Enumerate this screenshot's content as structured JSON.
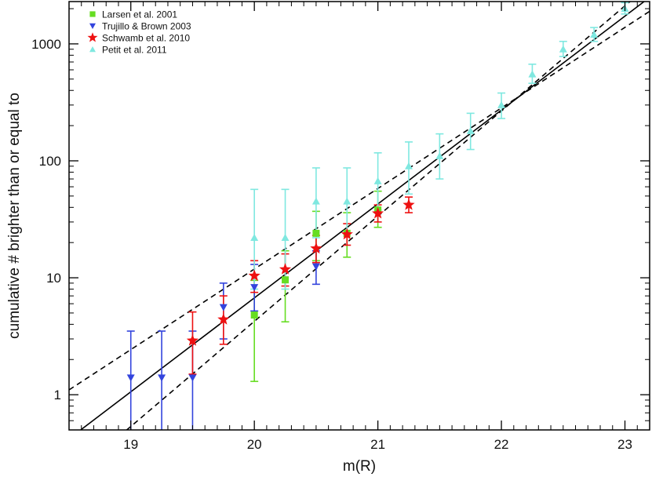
{
  "chart_data": {
    "type": "scatter",
    "xlabel": "m(R)",
    "ylabel": "cumulative # brighter than or equal to",
    "xlim": [
      18.5,
      23.2
    ],
    "ylim": [
      0.5,
      2300
    ],
    "yscale": "log",
    "grid": false,
    "legend_position": "top-left",
    "x_ticks": [
      19,
      20,
      21,
      22,
      23
    ],
    "x_tick_labels": [
      "19",
      "20",
      "21",
      "22",
      "23"
    ],
    "y_ticks": [
      1,
      10,
      100,
      1000
    ],
    "y_tick_labels": [
      "1",
      "10",
      "100",
      "1000"
    ],
    "series": [
      {
        "name": "Larsen et al. 2001",
        "marker": "square",
        "color": "#66dd22",
        "points": [
          {
            "x": 20.0,
            "y": 4.8,
            "lo": 1.3,
            "hi": 9.5
          },
          {
            "x": 20.25,
            "y": 9.6,
            "lo": 4.2,
            "hi": 17
          },
          {
            "x": 20.5,
            "y": 24,
            "lo": 14,
            "hi": 37
          },
          {
            "x": 20.75,
            "y": 24,
            "lo": 15,
            "hi": 36
          },
          {
            "x": 21.0,
            "y": 38,
            "lo": 27,
            "hi": 55
          }
        ]
      },
      {
        "name": "Trujillo & Brown 2003",
        "marker": "triangle-down",
        "color": "#3344dd",
        "points": [
          {
            "x": 19.0,
            "y": 1.4,
            "lo": 0.4,
            "hi": 3.5
          },
          {
            "x": 19.25,
            "y": 1.4,
            "lo": 0.4,
            "hi": 3.5
          },
          {
            "x": 19.5,
            "y": 1.4,
            "lo": 0.4,
            "hi": 3.5
          },
          {
            "x": 19.75,
            "y": 5.6,
            "lo": 3.0,
            "hi": 9.0
          },
          {
            "x": 20.0,
            "y": 8.3,
            "lo": 5.2,
            "hi": 13
          },
          {
            "x": 20.5,
            "y": 12.5,
            "lo": 8.8,
            "hi": 17
          }
        ]
      },
      {
        "name": "Schwamb et al. 2010",
        "marker": "star",
        "color": "#ee1111",
        "points": [
          {
            "x": 19.5,
            "y": 2.9,
            "lo": 1.5,
            "hi": 5.1
          },
          {
            "x": 19.75,
            "y": 4.4,
            "lo": 2.7,
            "hi": 7.0
          },
          {
            "x": 20.0,
            "y": 10.4,
            "lo": 7.5,
            "hi": 14
          },
          {
            "x": 20.25,
            "y": 11.8,
            "lo": 8.5,
            "hi": 16
          },
          {
            "x": 20.5,
            "y": 17.8,
            "lo": 13.5,
            "hi": 23
          },
          {
            "x": 20.75,
            "y": 23.5,
            "lo": 19,
            "hi": 29
          },
          {
            "x": 21.0,
            "y": 35.5,
            "lo": 30,
            "hi": 42
          },
          {
            "x": 21.25,
            "y": 42,
            "lo": 36,
            "hi": 49
          }
        ]
      },
      {
        "name": "Petit et al. 2011",
        "marker": "triangle-up",
        "color": "#7fe8e0",
        "points": [
          {
            "x": 20.0,
            "y": 22,
            "lo": 8,
            "hi": 57
          },
          {
            "x": 20.25,
            "y": 22,
            "lo": 8,
            "hi": 57
          },
          {
            "x": 20.5,
            "y": 45,
            "lo": 22,
            "hi": 87
          },
          {
            "x": 20.75,
            "y": 45,
            "lo": 24,
            "hi": 87
          },
          {
            "x": 21.0,
            "y": 67,
            "lo": 38,
            "hi": 117
          },
          {
            "x": 21.25,
            "y": 90,
            "lo": 52,
            "hi": 145
          },
          {
            "x": 21.5,
            "y": 110,
            "lo": 70,
            "hi": 170
          },
          {
            "x": 21.75,
            "y": 180,
            "lo": 125,
            "hi": 255
          },
          {
            "x": 22.0,
            "y": 300,
            "lo": 230,
            "hi": 380
          },
          {
            "x": 22.25,
            "y": 550,
            "lo": 460,
            "hi": 670
          },
          {
            "x": 22.5,
            "y": 900,
            "lo": 780,
            "hi": 1050
          },
          {
            "x": 22.75,
            "y": 1200,
            "lo": 1050,
            "hi": 1380
          },
          {
            "x": 23.0,
            "y": 2000,
            "lo": 1800,
            "hi": 2250
          }
        ]
      }
    ],
    "fit_lines": [
      {
        "style": "solid",
        "color": "#000000",
        "points": [
          [
            18.5,
            0.42
          ],
          [
            23.2,
            2500
          ]
        ]
      },
      {
        "style": "dashed",
        "color": "#000000",
        "points": [
          [
            18.5,
            1.1
          ],
          [
            23.2,
            1900
          ]
        ]
      },
      {
        "style": "dashed",
        "color": "#000000",
        "points": [
          [
            18.5,
            0.19
          ],
          [
            23.2,
            3200
          ]
        ]
      }
    ]
  }
}
